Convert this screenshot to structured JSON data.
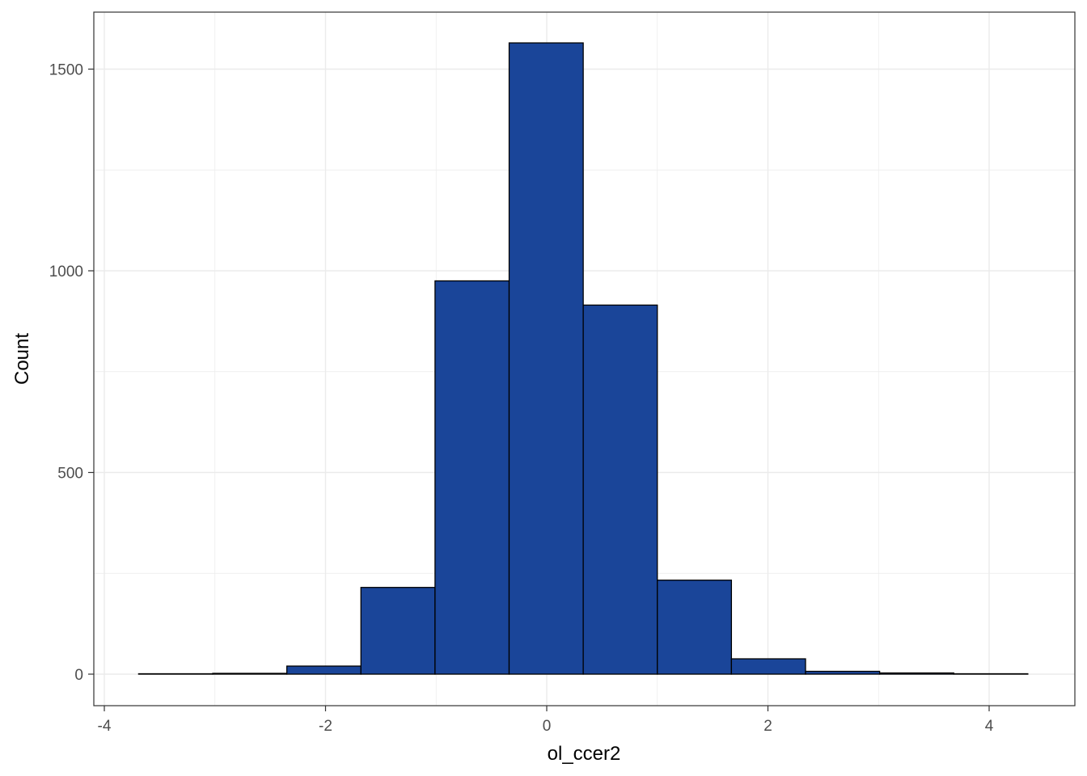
{
  "chart_data": {
    "type": "bar",
    "subtype": "histogram",
    "xlabel": "ol_ccer2",
    "ylabel": "Count",
    "xlim": [
      -4,
      4.5
    ],
    "ylim": [
      -75,
      1640
    ],
    "x_ticks": [
      -4,
      -2,
      0,
      2,
      4
    ],
    "y_ticks": [
      0,
      500,
      1000,
      1500
    ],
    "grid": true,
    "bins": [
      {
        "x0": -3.69,
        "x1": -3.02,
        "count": 1
      },
      {
        "x0": -3.02,
        "x1": -2.35,
        "count": 2
      },
      {
        "x0": -2.35,
        "x1": -1.68,
        "count": 20
      },
      {
        "x0": -1.68,
        "x1": -1.01,
        "count": 215
      },
      {
        "x0": -1.01,
        "x1": -0.34,
        "count": 975
      },
      {
        "x0": -0.34,
        "x1": 0.33,
        "count": 1565
      },
      {
        "x0": 0.33,
        "x1": 1.0,
        "count": 915
      },
      {
        "x0": 1.0,
        "x1": 1.67,
        "count": 233
      },
      {
        "x0": 1.67,
        "x1": 2.34,
        "count": 38
      },
      {
        "x0": 2.34,
        "x1": 3.01,
        "count": 7
      },
      {
        "x0": 3.01,
        "x1": 3.68,
        "count": 3
      },
      {
        "x0": 3.68,
        "x1": 4.35,
        "count": 1
      }
    ],
    "colors": {
      "bar_fill": "#1a4599",
      "bar_stroke": "#000000",
      "grid": "#ebebeb",
      "panel_border": "#333333",
      "tick_text": "#4d4d4d"
    }
  }
}
